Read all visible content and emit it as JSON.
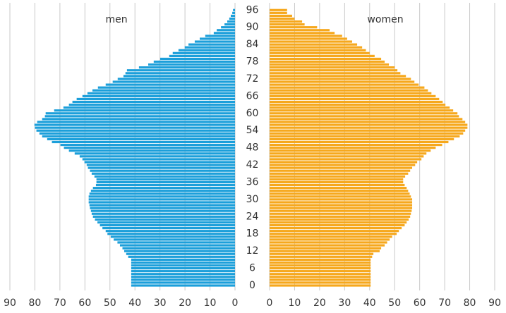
{
  "chart_data": {
    "type": "pyramid",
    "categories": [
      0,
      null,
      null,
      null,
      null,
      null,
      6,
      null,
      null,
      null,
      null,
      null,
      12,
      null,
      null,
      null,
      null,
      null,
      18,
      null,
      null,
      null,
      null,
      null,
      24,
      null,
      null,
      null,
      null,
      null,
      30,
      null,
      null,
      null,
      null,
      null,
      36,
      null,
      null,
      null,
      null,
      null,
      42,
      null,
      null,
      null,
      null,
      null,
      48,
      null,
      null,
      null,
      null,
      null,
      54,
      null,
      null,
      null,
      null,
      null,
      60,
      null,
      null,
      null,
      null,
      null,
      66,
      null,
      null,
      null,
      null,
      null,
      72,
      null,
      null,
      null,
      null,
      null,
      78,
      null,
      null,
      null,
      null,
      null,
      84,
      null,
      null,
      null,
      null,
      null,
      90,
      null,
      null,
      null,
      null,
      null,
      96
    ],
    "series": [
      {
        "name": "men",
        "color": "#1c9fda",
        "values": [
          41.5,
          41.5,
          41.5,
          41.5,
          41.5,
          41.5,
          41.5,
          41.5,
          41.5,
          41.5,
          42.7,
          43.5,
          44.3,
          45,
          46,
          47,
          48.5,
          49.7,
          51,
          51.7,
          53,
          54,
          55,
          56,
          56.8,
          57.3,
          57.6,
          58,
          58.2,
          58.5,
          58.5,
          58.5,
          58.2,
          57.6,
          56.8,
          55.6,
          55.4,
          55.4,
          56.2,
          57.3,
          58,
          58.8,
          59.3,
          60.2,
          61,
          62.1,
          64.1,
          66.4,
          68.4,
          69.8,
          73.2,
          75.1,
          77.1,
          78.2,
          79.4,
          80,
          80.2,
          79.1,
          77.1,
          76,
          75.7,
          72.3,
          68.6,
          66.4,
          65,
          63.3,
          61,
          59,
          57,
          54.8,
          51.7,
          48.9,
          46.9,
          44.6,
          43.8,
          43.2,
          38.4,
          34.7,
          32.5,
          29.9,
          26.3,
          24.9,
          22.6,
          20.1,
          18.6,
          16.1,
          14.1,
          11.9,
          8.5,
          7.3,
          5.6,
          4.2,
          3.1,
          2.3,
          1.7,
          1.1,
          0.8
        ]
      },
      {
        "name": "women",
        "color": "#f6a81d",
        "values": [
          40.4,
          40.4,
          40.4,
          40.4,
          40.4,
          40.4,
          40.4,
          40.4,
          40.4,
          40.4,
          41,
          41.5,
          44,
          44.6,
          46,
          47,
          48,
          49,
          50.8,
          51.7,
          52.8,
          54,
          54.8,
          55.6,
          56.2,
          56.5,
          56.8,
          57,
          57,
          57,
          57,
          56.5,
          56,
          55.4,
          54.8,
          54,
          53.4,
          53.4,
          54.2,
          55.4,
          56.2,
          57,
          58.2,
          59,
          60.7,
          61.6,
          62.7,
          64.4,
          66.4,
          69,
          71.5,
          73.7,
          76,
          77.4,
          78.2,
          79.1,
          79.1,
          78.2,
          77.1,
          75.7,
          75.1,
          73.4,
          72,
          70.3,
          69.2,
          67.8,
          66.4,
          64.7,
          63.3,
          61.9,
          59.6,
          57.9,
          56.5,
          54.5,
          52.3,
          51.1,
          50,
          47.7,
          46,
          44.6,
          42,
          40,
          38.5,
          37,
          35,
          33,
          31,
          29,
          26,
          24,
          19,
          14,
          13,
          10,
          9,
          7,
          7
        ]
      }
    ],
    "xlim": [
      0,
      90
    ],
    "xticks": [
      0,
      10,
      20,
      30,
      40,
      50,
      60,
      70,
      80,
      90
    ],
    "grid": true
  }
}
